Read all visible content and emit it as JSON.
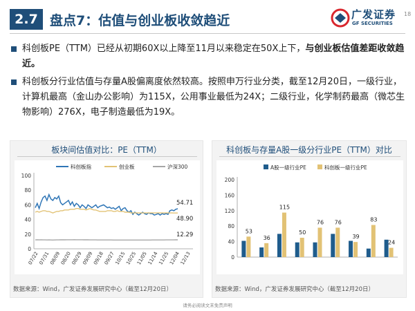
{
  "header": {
    "section_number": "2.7",
    "title": "盘点7：估值与创业板收敛趋近",
    "logo_cn": "广发证券",
    "logo_en": "GF SECURITIES",
    "page_number": "18"
  },
  "bullets": [
    {
      "text": "科创板PE（TTM）已经从初期60X以上降至11月以来稳定在50X上下，",
      "bold": "与创业板估值差距收敛趋近。"
    },
    {
      "text": "科创板分行业估值与存量A股偏离度依然较高。按照申万行业分类，截至12月20日，一级行业，计算机最高（金山办公影响）为115X，公用事业最低为24X；二级行业，化学制药最高（微芯生物影响）276X，电子制造最低为19X。",
      "bold": ""
    }
  ],
  "left_chart": {
    "panel_title": "板块间估值对比：PE（TTM）",
    "source": "数据来源：Wind，广发证券发展研究中心（截至12月20日）"
  },
  "right_chart": {
    "panel_title": "科创板与存量A股一级分行业PE（TTM）对比",
    "source": "数据来源：Wind，广发证券发展研究中心（截至12月20日）"
  },
  "footer": {
    "text": "请务必阅读文末免责声明"
  },
  "chart_data": [
    {
      "type": "line",
      "title": "板块间估值对比：PE（TTM）",
      "xlabel": "",
      "ylabel": "",
      "ylim": [
        0,
        100
      ],
      "y_ticks": [
        0,
        20,
        40,
        60,
        80,
        100
      ],
      "x_ticks": [
        "07/22",
        "07/31",
        "08/09",
        "08/20",
        "08/29",
        "09/09",
        "09/18",
        "09/27",
        "10/15",
        "10/25",
        "11/05",
        "11/14",
        "11/25",
        "12/04",
        "12/13"
      ],
      "legend_position": "top",
      "grid": false,
      "series": [
        {
          "name": "科创板指",
          "color": "#2e75b6",
          "values": [
            56,
            62,
            55,
            64,
            70,
            72,
            66,
            74,
            68,
            66,
            70,
            68,
            72,
            63,
            60,
            62,
            64,
            66,
            60,
            64,
            58,
            62,
            60,
            56,
            60,
            58,
            55,
            60,
            58,
            56,
            58,
            60,
            56,
            58,
            59,
            60,
            58,
            56,
            57,
            55,
            56,
            54,
            56,
            58,
            52,
            55,
            56,
            52,
            50,
            52,
            47,
            50,
            48,
            46,
            48,
            50,
            48,
            47,
            49,
            48,
            48,
            46,
            47,
            48,
            46,
            48,
            47,
            48,
            47,
            52,
            53,
            52,
            54,
            54.71
          ],
          "end_label": "54.71"
        },
        {
          "name": "创业板",
          "color": "#e2c275",
          "values": [
            50,
            51,
            50,
            51,
            52,
            52,
            51,
            51,
            50,
            49,
            50,
            51,
            51,
            52,
            52,
            53,
            53,
            53,
            54,
            54,
            54,
            55,
            55,
            54,
            54,
            54,
            53,
            54,
            55,
            54,
            53,
            53,
            52,
            51,
            51,
            51,
            51,
            52,
            52,
            52,
            51,
            51,
            52,
            51,
            51,
            51,
            50,
            50,
            50,
            49,
            49,
            49,
            49,
            49,
            49,
            49,
            49,
            49,
            49,
            49,
            49,
            49,
            49,
            49,
            49,
            49,
            49,
            49,
            49,
            49,
            49,
            48.9,
            48.9,
            48.9
          ],
          "end_label": "48.90"
        },
        {
          "name": "沪深300",
          "color": "#a6a6a6",
          "values": [
            12.2,
            12.3,
            12.2,
            12.3,
            12.2,
            12.2,
            12.1,
            12.2,
            12.1,
            12.0,
            12.1,
            12.2,
            12.2,
            12.3,
            12.3,
            12.3,
            12.4,
            12.4,
            12.4,
            12.4,
            12.5,
            12.4,
            12.4,
            12.4,
            12.4,
            12.3,
            12.3,
            12.3,
            12.2,
            12.2,
            12.2,
            12.2,
            12.1,
            12.1,
            12.1,
            12.1,
            12.1,
            12.1,
            12.1,
            12.1,
            12.0,
            12.0,
            12.0,
            12.0,
            12.0,
            12.0,
            12.0,
            12.0,
            12.0,
            12.0,
            12.0,
            12.0,
            12.0,
            12.0,
            12.0,
            12.0,
            12.0,
            12.0,
            12.0,
            12.0,
            12.1,
            12.1,
            12.1,
            12.1,
            12.1,
            12.1,
            12.1,
            12.2,
            12.2,
            12.2,
            12.2,
            12.2,
            12.3,
            12.29
          ],
          "end_label": "12.29"
        }
      ]
    },
    {
      "type": "bar",
      "title": "科创板与存量A股一级分行业PE（TTM）对比",
      "xlabel": "",
      "ylabel": "",
      "ylim": [
        0,
        200
      ],
      "y_ticks": [
        0,
        40,
        80,
        120,
        160,
        200
      ],
      "categories": [
        "",
        "",
        "",
        "",
        "",
        "",
        "",
        "",
        ""
      ],
      "legend_position": "top",
      "series": [
        {
          "name": "A股一级行业PE",
          "color": "#1f5c8c",
          "values": [
            42,
            25,
            60,
            38,
            38,
            60,
            42,
            22,
            45
          ]
        },
        {
          "name": "科创板一级行业PE",
          "color": "#e2c275",
          "values": [
            53,
            36,
            115,
            50,
            76,
            76,
            39,
            83,
            24
          ]
        }
      ],
      "data_labels": [
        "53",
        "36",
        "115",
        "50",
        "76",
        "76",
        "39",
        "83",
        "24"
      ]
    }
  ]
}
